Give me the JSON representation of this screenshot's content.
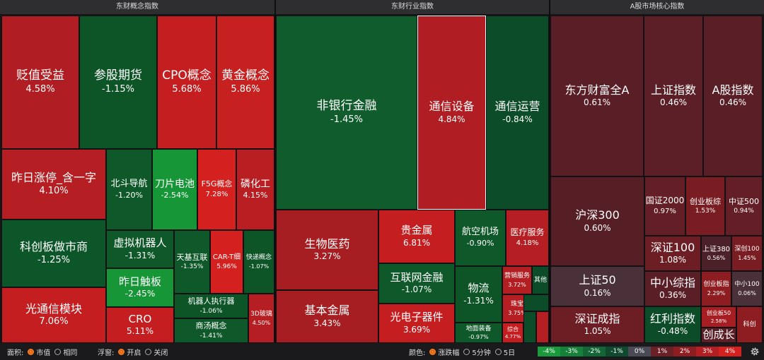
{
  "panels": [
    {
      "title": "东财概念指数"
    },
    {
      "title": "东财行业指数"
    },
    {
      "title": "A股市场核心指数"
    }
  ],
  "tiles": {
    "p1": [
      {
        "name": "贬值受益",
        "pct": "4.58%"
      },
      {
        "name": "参股期货",
        "pct": "-1.15%"
      },
      {
        "name": "CPO概念",
        "pct": "5.68%"
      },
      {
        "name": "黄金概念",
        "pct": "5.86%"
      },
      {
        "name": "昨日涨停_含一字",
        "pct": "4.10%"
      },
      {
        "name": "北斗导航",
        "pct": "-1.20%"
      },
      {
        "name": "刀片电池",
        "pct": "-2.54%"
      },
      {
        "name": "F5G概念",
        "pct": "7.28%"
      },
      {
        "name": "磷化工",
        "pct": "4.15%"
      },
      {
        "name": "科创板做市商",
        "pct": "-1.25%"
      },
      {
        "name": "虚拟机器人",
        "pct": "-1.31%"
      },
      {
        "name": "天基互联",
        "pct": "-1.35%"
      },
      {
        "name": "CAR-T细",
        "pct": "5.96%"
      },
      {
        "name": "快递概念",
        "pct": "-1.07%"
      },
      {
        "name": "昨日触板",
        "pct": "-2.45%"
      },
      {
        "name": "光通信模块",
        "pct": "7.06%"
      },
      {
        "name": "CRO",
        "pct": "5.11%"
      },
      {
        "name": "机器人执行器",
        "pct": "-1.06%"
      },
      {
        "name": "商汤概念",
        "pct": "-1.41%"
      },
      {
        "name": "3D玻璃",
        "pct": "4.50%"
      }
    ],
    "p2": [
      {
        "name": "非银行金融",
        "pct": "-1.45%"
      },
      {
        "name": "通信设备",
        "pct": "4.84%"
      },
      {
        "name": "通信运营",
        "pct": "-0.84%"
      },
      {
        "name": "生物医药",
        "pct": "3.27%"
      },
      {
        "name": "贵金属",
        "pct": "6.81%"
      },
      {
        "name": "航空机场",
        "pct": "-0.90%"
      },
      {
        "name": "医疗服务",
        "pct": "4.18%"
      },
      {
        "name": "互联网金融",
        "pct": "-1.07%"
      },
      {
        "name": "物流",
        "pct": "-1.31%"
      },
      {
        "name": "营销服务",
        "pct": "3.72%"
      },
      {
        "name": "其他",
        "pct": ""
      },
      {
        "name": "基本金属",
        "pct": "3.43%"
      },
      {
        "name": "光电子器件",
        "pct": "3.69%"
      },
      {
        "name": "珠宝",
        "pct": "3.75%"
      },
      {
        "name": "地面装备",
        "pct": "-0.97%"
      },
      {
        "name": "综合",
        "pct": "4.77%"
      }
    ],
    "p3": [
      {
        "name": "东方财富全A",
        "pct": "0.61%"
      },
      {
        "name": "上证指数",
        "pct": "0.46%"
      },
      {
        "name": "A股指数",
        "pct": "0.46%"
      },
      {
        "name": "沪深300",
        "pct": "0.60%"
      },
      {
        "name": "国证2000",
        "pct": "0.97%"
      },
      {
        "name": "创业板综",
        "pct": "1.53%"
      },
      {
        "name": "中证500",
        "pct": "0.94%"
      },
      {
        "name": "深证100",
        "pct": "1.08%"
      },
      {
        "name": "上证380",
        "pct": "0.56%"
      },
      {
        "name": "深创100",
        "pct": "1.45%"
      },
      {
        "name": "上证50",
        "pct": "0.16%"
      },
      {
        "name": "中小综指",
        "pct": "0.36%"
      },
      {
        "name": "创业板指",
        "pct": "2.29%"
      },
      {
        "name": "中小100",
        "pct": "0.06%"
      },
      {
        "name": "深证成指",
        "pct": "1.05%"
      },
      {
        "name": "红利指数",
        "pct": "-0.48%"
      },
      {
        "name": "创业板50",
        "pct": "2.58%"
      },
      {
        "name": "创成长",
        "pct": ""
      },
      {
        "name": "科创",
        "pct": ""
      }
    ]
  },
  "bottom": {
    "area_label": "面积:",
    "area_opt1": "市值",
    "area_opt2": "相同",
    "float_label": "浮窗:",
    "float_opt1": "开启",
    "float_opt2": "关闭",
    "color_label": "颜色:",
    "color_opt1": "涨跌幅",
    "color_opt2": "5分钟",
    "color_opt3": "5日"
  },
  "legend": [
    {
      "label": "-4%",
      "color": "#1a9a3c"
    },
    {
      "label": "-3%",
      "color": "#16803a"
    },
    {
      "label": "-2%",
      "color": "#136535"
    },
    {
      "label": "-1%",
      "color": "#104a2e"
    },
    {
      "label": "0%",
      "color": "#4a4a56"
    },
    {
      "label": "1%",
      "color": "#6b1f26"
    },
    {
      "label": "2%",
      "color": "#8e1d22"
    },
    {
      "label": "3%",
      "color": "#b21e22"
    },
    {
      "label": "4%",
      "color": "#d4201f"
    }
  ],
  "icons": {
    "settings": "gear-icon"
  }
}
